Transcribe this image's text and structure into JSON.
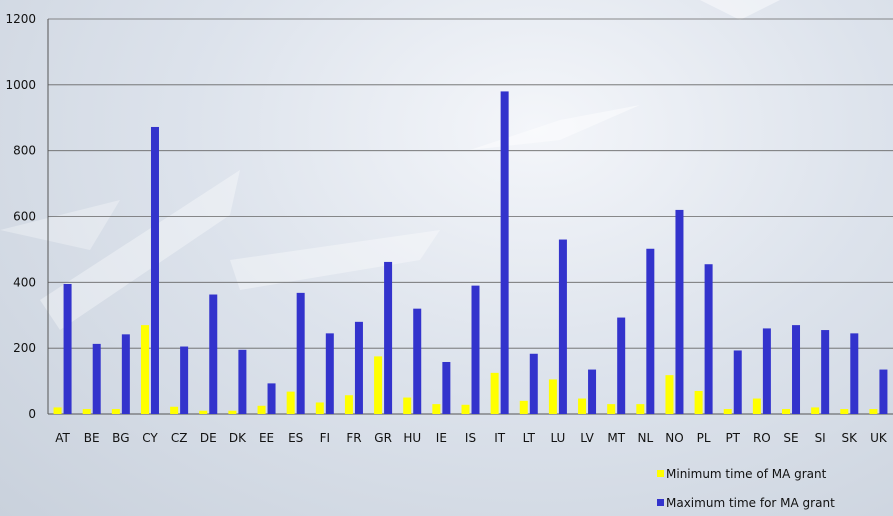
{
  "chart_data": {
    "type": "bar",
    "title": "",
    "xlabel": "",
    "ylabel": "",
    "ylim": [
      0,
      1200
    ],
    "yticks": [
      0,
      200,
      400,
      600,
      800,
      1000,
      1200
    ],
    "grid": true,
    "legend_position": "bottom-right",
    "categories": [
      "AT",
      "BE",
      "BG",
      "CY",
      "CZ",
      "DE",
      "DK",
      "EE",
      "ES",
      "FI",
      "FR",
      "GR",
      "HU",
      "IE",
      "IS",
      "IT",
      "LT",
      "LU",
      "LV",
      "MT",
      "NL",
      "NO",
      "PL",
      "PT",
      "RO",
      "SE",
      "SI",
      "SK",
      "UK"
    ],
    "series": [
      {
        "name": "Minimum time of MA grant",
        "color": "#ffff00",
        "values": [
          20,
          15,
          15,
          270,
          22,
          10,
          10,
          25,
          68,
          35,
          57,
          175,
          50,
          30,
          28,
          125,
          40,
          105,
          47,
          30,
          30,
          118,
          70,
          15,
          47,
          15,
          20,
          15,
          15
        ]
      },
      {
        "name": "Maximum time for MA grant",
        "color": "#3333cc",
        "values": [
          395,
          213,
          242,
          872,
          205,
          363,
          195,
          93,
          368,
          245,
          280,
          462,
          320,
          158,
          390,
          980,
          183,
          530,
          135,
          293,
          502,
          620,
          455,
          193,
          260,
          270,
          255,
          245,
          135
        ]
      }
    ]
  }
}
